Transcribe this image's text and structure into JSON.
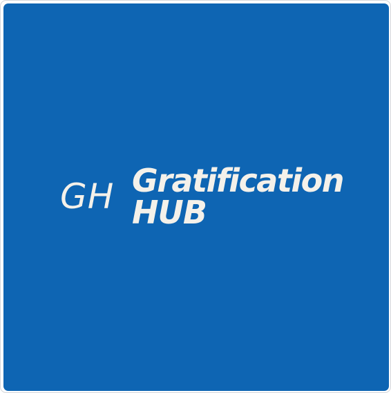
{
  "logo": {
    "monogram": "GH",
    "name_line1": "Gratification",
    "name_line2": "HUB"
  },
  "colors": {
    "tile_background": "#0e65b3",
    "text": "#f4f1ea",
    "frame_border": "#d4d6da"
  }
}
